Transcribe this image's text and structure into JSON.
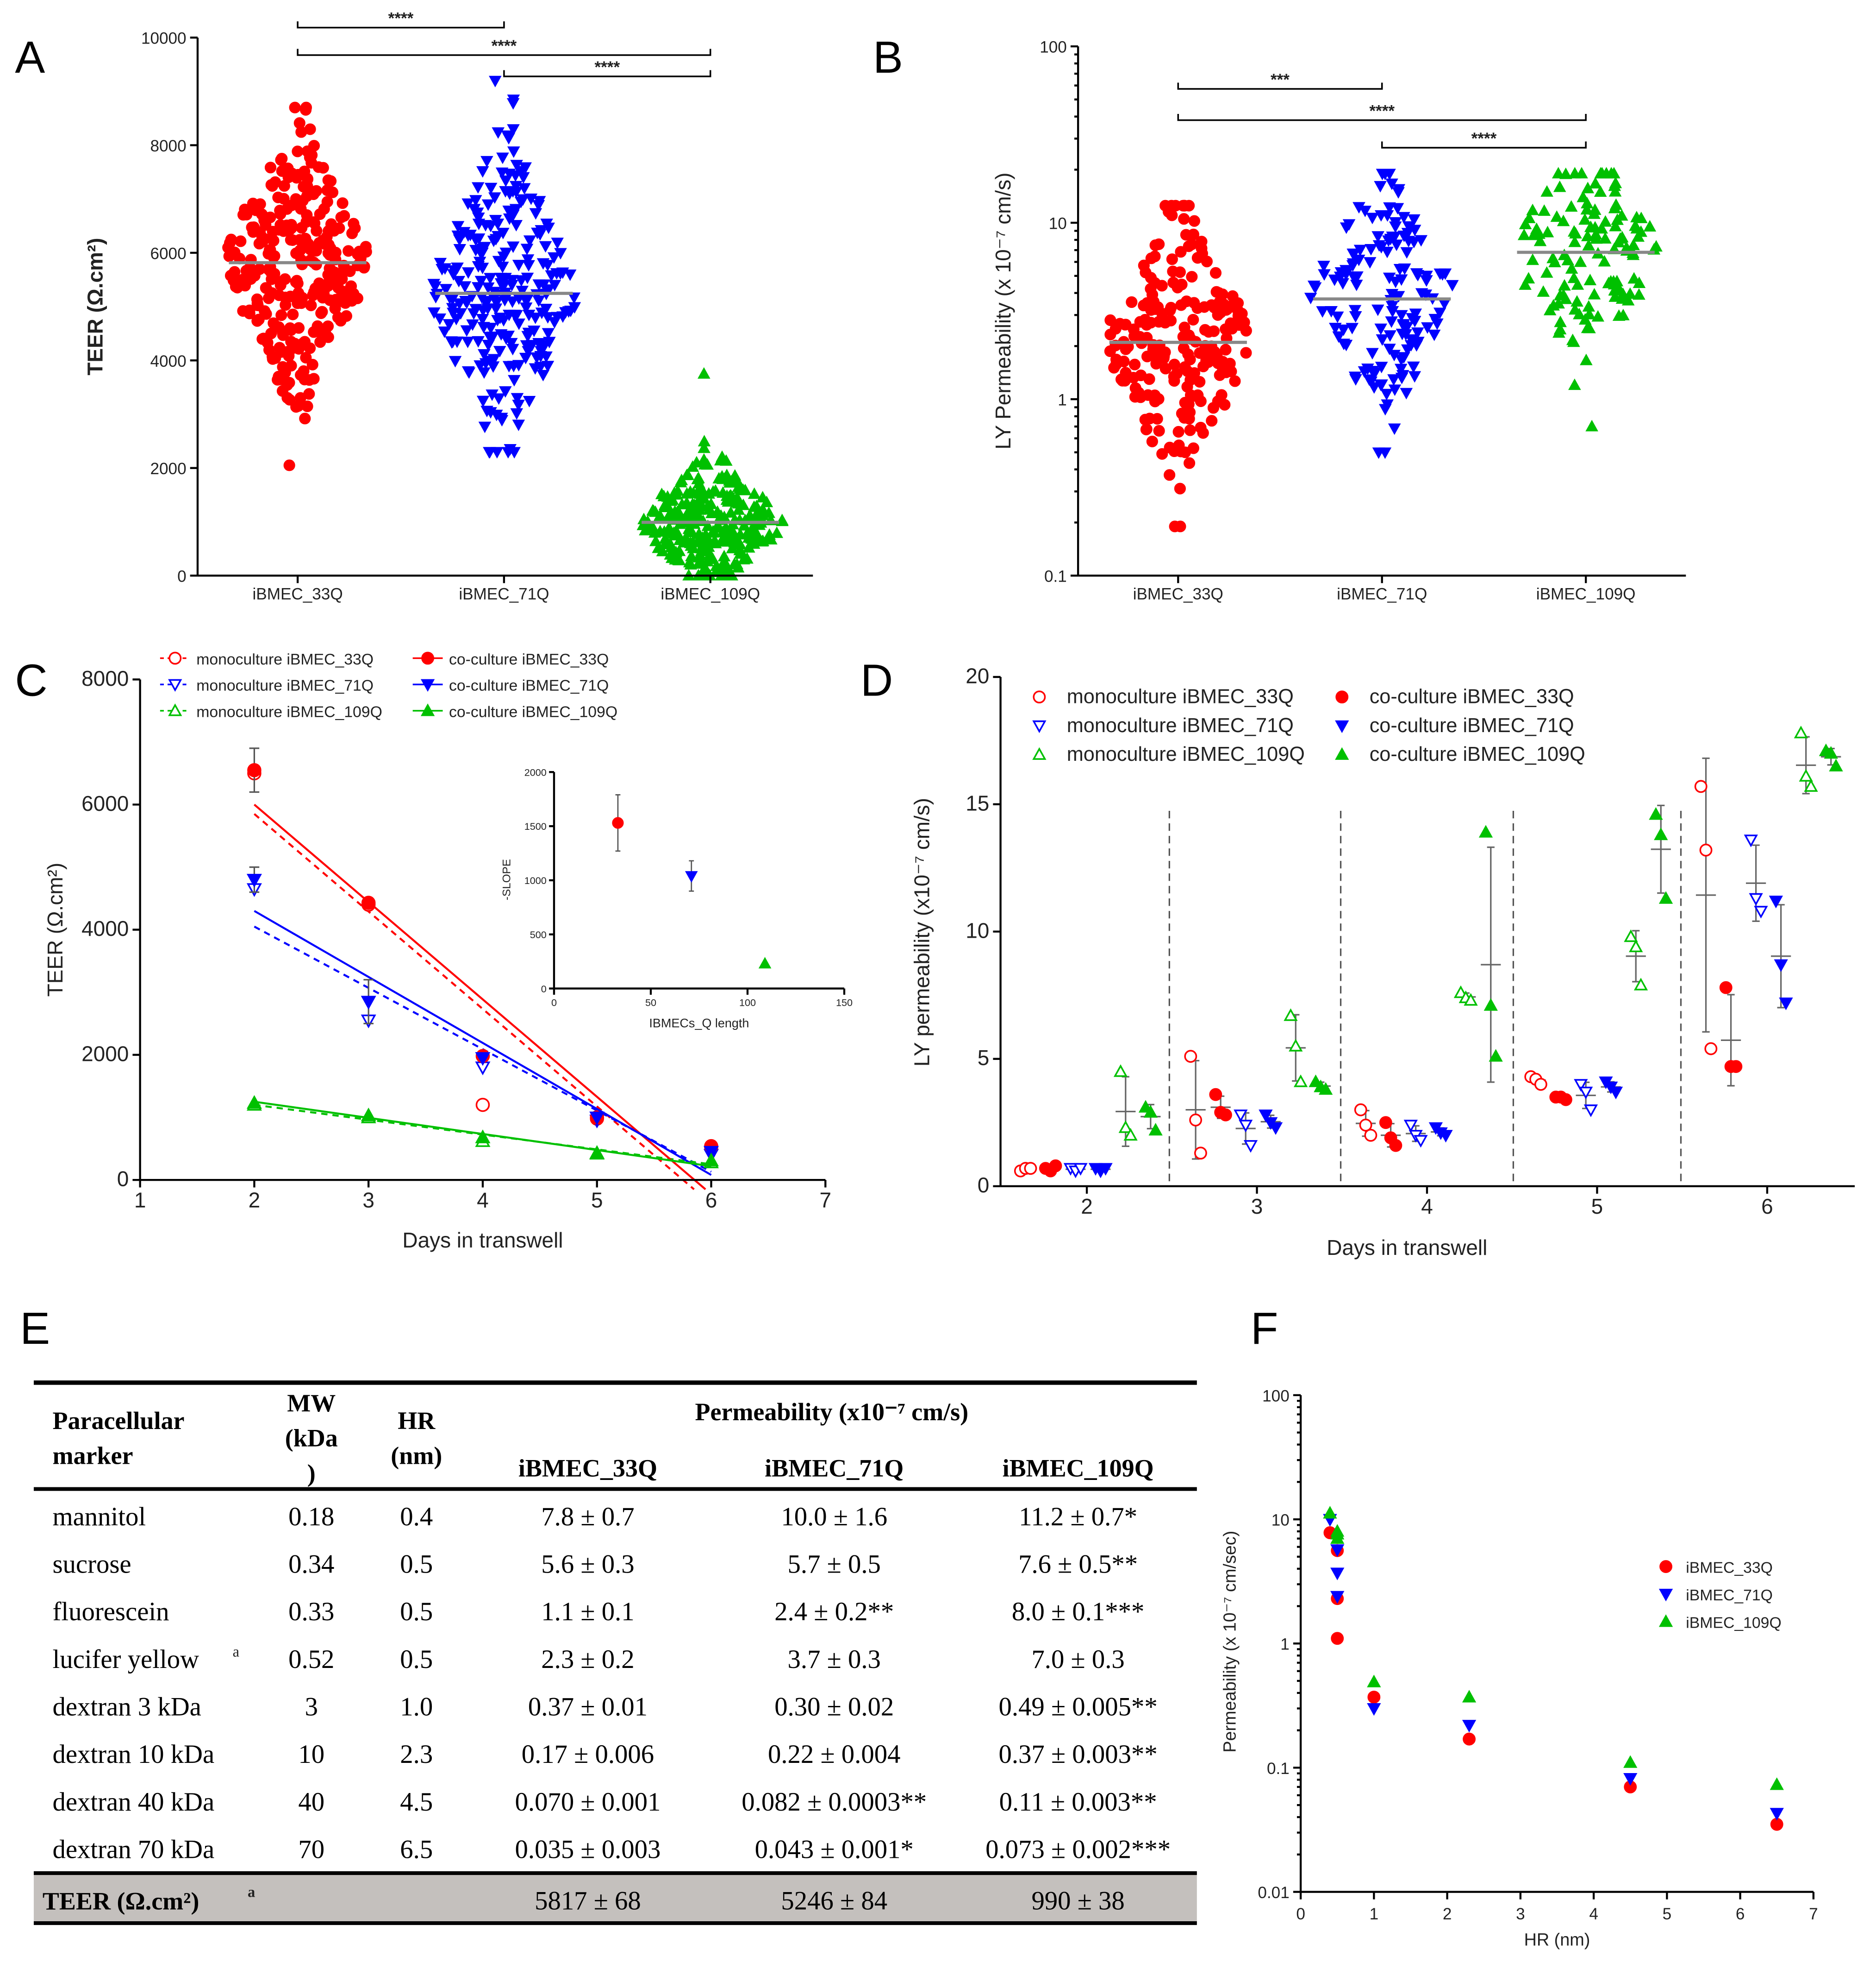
{
  "panel_labels": [
    "A",
    "B",
    "C",
    "D",
    "E",
    "F"
  ],
  "chart_data": [
    {
      "id": "A",
      "type": "scatter",
      "subtype": "swarm",
      "ylabel": "TEER (Ω.cm²)",
      "ylim": [
        0,
        10000
      ],
      "yticks": [
        0,
        2000,
        4000,
        6000,
        8000,
        10000
      ],
      "categories": [
        "iBMEC_33Q",
        "iBMEC_71Q",
        "iBMEC_109Q"
      ],
      "groups": [
        {
          "name": "iBMEC_33Q",
          "color": "#ff0000",
          "marker": "circle",
          "mean": 5817,
          "sd": 1150,
          "min": 2050,
          "max": 8700,
          "n": 300
        },
        {
          "name": "iBMEC_71Q",
          "color": "#0000ff",
          "marker": "triangle-down",
          "mean": 5246,
          "sd": 1300,
          "min": 2300,
          "max": 9200,
          "n": 260
        },
        {
          "name": "iBMEC_109Q",
          "color": "#00c000",
          "marker": "triangle-up",
          "mean": 990,
          "sd": 550,
          "min": 0,
          "max": 3750,
          "n": 300
        }
      ],
      "significance": [
        {
          "from": 0,
          "to": 1,
          "label": "****"
        },
        {
          "from": 0,
          "to": 2,
          "label": "****"
        },
        {
          "from": 1,
          "to": 2,
          "label": "****"
        }
      ]
    },
    {
      "id": "B",
      "type": "scatter",
      "subtype": "swarm",
      "yscale": "log",
      "ylabel": "LY Permeability (x 10⁻⁷ cm/s)",
      "ylim": [
        0.1,
        100
      ],
      "yticks": [
        0.1,
        1,
        10,
        100
      ],
      "categories": [
        "iBMEC_33Q",
        "iBMEC_71Q",
        "iBMEC_109Q"
      ],
      "groups": [
        {
          "name": "iBMEC_33Q",
          "color": "#ff0000",
          "marker": "circle",
          "mean": 2.1,
          "min": 0.19,
          "max": 12.5,
          "n": 220
        },
        {
          "name": "iBMEC_71Q",
          "color": "#0000ff",
          "marker": "triangle-down",
          "mean": 3.7,
          "min": 0.5,
          "max": 19,
          "n": 150
        },
        {
          "name": "iBMEC_109Q",
          "color": "#00c000",
          "marker": "triangle-up",
          "mean": 6.8,
          "min": 0.7,
          "max": 19,
          "n": 130
        }
      ],
      "significance": [
        {
          "from": 0,
          "to": 1,
          "label": "***"
        },
        {
          "from": 0,
          "to": 2,
          "label": "****"
        },
        {
          "from": 1,
          "to": 2,
          "label": "****"
        }
      ]
    },
    {
      "id": "C",
      "type": "scatter",
      "xlabel": "Days in transwell",
      "ylabel": "TEER (Ω.cm²)",
      "xlim": [
        1,
        7
      ],
      "ylim": [
        0,
        8000
      ],
      "xticks": [
        1,
        2,
        3,
        4,
        5,
        6,
        7
      ],
      "yticks": [
        0,
        2000,
        4000,
        6000,
        8000
      ],
      "series": [
        {
          "name": "monoculture iBMEC_33Q",
          "color": "#ff0000",
          "marker": "circle",
          "filled": false,
          "points": [
            [
              2,
              6500
            ],
            [
              3,
              4400
            ],
            [
              4,
              1200
            ],
            [
              5,
              980
            ],
            [
              6,
              520
            ]
          ],
          "err": [
            0,
            0,
            0,
            0,
            0
          ],
          "fit": [
            [
              2,
              5850
            ],
            [
              5.85,
              -150
            ]
          ],
          "dashed": true
        },
        {
          "name": "monoculture iBMEC_71Q",
          "color": "#0000ff",
          "marker": "triangle-down",
          "filled": false,
          "points": [
            [
              2,
              4650
            ],
            [
              3,
              2550
            ],
            [
              4,
              1800
            ],
            [
              5,
              950
            ],
            [
              6,
              400
            ]
          ],
          "err": [
            0,
            0,
            0,
            0,
            0
          ],
          "fit": [
            [
              2,
              4050
            ],
            [
              6,
              130
            ]
          ],
          "dashed": true
        },
        {
          "name": "monoculture iBMEC_109Q",
          "color": "#00c000",
          "marker": "triangle-up",
          "filled": false,
          "points": [
            [
              2,
              1200
            ],
            [
              3,
              1000
            ],
            [
              4,
              620
            ],
            [
              5,
              420
            ],
            [
              6,
              280
            ]
          ],
          "err": [
            0,
            0,
            0,
            0,
            0
          ],
          "fit": [
            [
              2,
              1200
            ],
            [
              6,
              250
            ]
          ],
          "dashed": true
        },
        {
          "name": "co-culture iBMEC_33Q",
          "color": "#ff0000",
          "marker": "circle",
          "filled": true,
          "points": [
            [
              2,
              6550
            ],
            [
              3,
              4430
            ],
            [
              4,
              1980
            ],
            [
              5,
              1000
            ],
            [
              6,
              540
            ]
          ],
          "err": [
            350,
            0,
            0,
            0,
            0
          ],
          "fit": [
            [
              2,
              6000
            ],
            [
              5.95,
              -150
            ]
          ],
          "dashed": false
        },
        {
          "name": "co-culture iBMEC_71Q",
          "color": "#0000ff",
          "marker": "triangle-down",
          "filled": true,
          "points": [
            [
              2,
              4800
            ],
            [
              3,
              2850
            ],
            [
              4,
              1950
            ],
            [
              5,
              1000
            ],
            [
              6,
              450
            ]
          ],
          "err": [
            200,
            350,
            0,
            0,
            0
          ],
          "fit": [
            [
              2,
              4300
            ],
            [
              6,
              80
            ]
          ],
          "dashed": false
        },
        {
          "name": "co-culture iBMEC_109Q",
          "color": "#00c000",
          "marker": "triangle-up",
          "filled": true,
          "points": [
            [
              2,
              1230
            ],
            [
              3,
              1030
            ],
            [
              4,
              680
            ],
            [
              5,
              430
            ],
            [
              6,
              310
            ]
          ],
          "err": [
            0,
            0,
            0,
            0,
            0
          ],
          "fit": [
            [
              2,
              1250
            ],
            [
              6,
              220
            ]
          ],
          "dashed": false
        }
      ],
      "inset": {
        "type": "scatter",
        "xlabel": "IBMECs_Q length",
        "ylabel": "-SLOPE",
        "xlim": [
          0,
          150
        ],
        "ylim": [
          0,
          2000
        ],
        "xticks": [
          0,
          50,
          100,
          150
        ],
        "yticks": [
          0,
          500,
          1000,
          1500,
          2000
        ],
        "points": [
          {
            "x": 33,
            "y": 1530,
            "err": 260,
            "color": "#ff0000",
            "marker": "circle"
          },
          {
            "x": 71,
            "y": 1040,
            "err": 140,
            "color": "#0000ff",
            "marker": "triangle-down"
          },
          {
            "x": 109,
            "y": 230,
            "err": 0,
            "color": "#00c000",
            "marker": "triangle-up"
          }
        ]
      }
    },
    {
      "id": "D",
      "type": "scatter",
      "xlabel": "Days in transwell",
      "ylabel": "LY permeability (x10⁻⁷ cm/s)",
      "ylim": [
        0,
        20
      ],
      "yticks": [
        0,
        5,
        10,
        15,
        20
      ],
      "days": [
        2,
        3,
        4,
        5,
        6
      ],
      "series": [
        {
          "name": "monoculture iBMEC_33Q",
          "color": "#ff0000",
          "marker": "circle",
          "filled": false,
          "values": [
            [
              0.6,
              0.7,
              0.7
            ],
            [
              5.1,
              2.6,
              1.3
            ],
            [
              3.0,
              2.4,
              2.0
            ],
            [
              4.3,
              4.2,
              4.0
            ],
            [
              15.7,
              13.2,
              5.4
            ]
          ]
        },
        {
          "name": "co-culture iBMEC_33Q",
          "color": "#ff0000",
          "marker": "circle",
          "filled": true,
          "values": [
            [
              0.7,
              0.6,
              0.8
            ],
            [
              3.6,
              2.9,
              2.8
            ],
            [
              2.5,
              1.9,
              1.6
            ],
            [
              3.5,
              3.5,
              3.4
            ],
            [
              7.8,
              4.7,
              4.7
            ]
          ]
        },
        {
          "name": "monoculture iBMEC_71Q",
          "color": "#0000ff",
          "marker": "triangle-down",
          "filled": false,
          "values": [
            [
              0.7,
              0.6,
              0.7
            ],
            [
              2.8,
              2.4,
              1.6
            ],
            [
              2.4,
              2.0,
              1.8
            ],
            [
              4.0,
              3.7,
              3.0
            ],
            [
              13.6,
              11.3,
              10.8
            ]
          ]
        },
        {
          "name": "co-culture iBMEC_71Q",
          "color": "#0000ff",
          "marker": "triangle-down",
          "filled": true,
          "values": [
            [
              0.7,
              0.6,
              0.7
            ],
            [
              2.8,
              2.5,
              2.3
            ],
            [
              2.3,
              2.1,
              2.0
            ],
            [
              4.1,
              3.9,
              3.7
            ],
            [
              11.2,
              8.7,
              7.2
            ]
          ]
        },
        {
          "name": "monoculture iBMEC_109Q",
          "color": "#00c000",
          "marker": "triangle-up",
          "filled": false,
          "values": [
            [
              4.5,
              2.3,
              2.0
            ],
            [
              6.7,
              5.5,
              4.1
            ],
            [
              7.6,
              7.4,
              7.3
            ],
            [
              9.8,
              9.4,
              7.9
            ],
            [
              17.8,
              16.1,
              15.7
            ]
          ]
        },
        {
          "name": "co-culture iBMEC_109Q",
          "color": "#00c000",
          "marker": "triangle-up",
          "filled": true,
          "values": [
            [
              3.1,
              2.9,
              2.2
            ],
            [
              4.1,
              3.9,
              3.8
            ],
            [
              13.9,
              7.1,
              5.1
            ],
            [
              14.6,
              13.8,
              11.3
            ],
            [
              17.1,
              17.0,
              16.5
            ]
          ]
        }
      ]
    },
    {
      "id": "F",
      "type": "scatter",
      "yscale": "log",
      "xlabel": "HR (nm)",
      "ylabel": "Permeability (x 10⁻⁷ cm/sec)",
      "xlim": [
        0,
        7
      ],
      "ylim": [
        0.01,
        100
      ],
      "xticks": [
        0,
        1,
        2,
        3,
        4,
        5,
        6,
        7
      ],
      "yticks": [
        0.01,
        0.1,
        1,
        10,
        100
      ],
      "series": [
        {
          "name": "iBMEC_33Q",
          "color": "#ff0000",
          "marker": "circle",
          "points": [
            [
              0.4,
              7.8
            ],
            [
              0.5,
              5.6
            ],
            [
              0.5,
              1.1
            ],
            [
              0.5,
              2.3
            ],
            [
              1.0,
              0.37
            ],
            [
              2.3,
              0.17
            ],
            [
              4.5,
              0.07
            ],
            [
              6.5,
              0.035
            ]
          ]
        },
        {
          "name": "iBMEC_71Q",
          "color": "#0000ff",
          "marker": "triangle-down",
          "points": [
            [
              0.4,
              10.0
            ],
            [
              0.5,
              5.7
            ],
            [
              0.5,
              2.4
            ],
            [
              0.5,
              3.7
            ],
            [
              1.0,
              0.3
            ],
            [
              2.3,
              0.22
            ],
            [
              4.5,
              0.082
            ],
            [
              6.5,
              0.043
            ]
          ]
        },
        {
          "name": "iBMEC_109Q",
          "color": "#00c000",
          "marker": "triangle-up",
          "points": [
            [
              0.4,
              11.2
            ],
            [
              0.5,
              7.6
            ],
            [
              0.5,
              8.0
            ],
            [
              0.5,
              7.0
            ],
            [
              1.0,
              0.49
            ],
            [
              2.3,
              0.37
            ],
            [
              4.5,
              0.11
            ],
            [
              6.5,
              0.073
            ]
          ]
        }
      ]
    }
  ],
  "table": {
    "header": {
      "marker": [
        "Paracellular",
        "marker"
      ],
      "mw": [
        "MW",
        "(kDa",
        ")"
      ],
      "hr": [
        "HR",
        "(nm)"
      ],
      "permeability": "Permeability (x10⁻⁷ cm/s)",
      "groups": [
        "iBMEC_33Q",
        "iBMEC_71Q",
        "iBMEC_109Q"
      ]
    },
    "rows": [
      {
        "marker": "mannitol",
        "note": "",
        "mw": "0.18",
        "hr": "0.4",
        "v33": "7.8 ± 0.7",
        "v71": "10.0 ± 1.6",
        "v109": "11.2 ± 0.7*"
      },
      {
        "marker": "sucrose",
        "note": "",
        "mw": "0.34",
        "hr": "0.5",
        "v33": "5.6 ± 0.3",
        "v71": "5.7 ± 0.5",
        "v109": "7.6 ± 0.5**"
      },
      {
        "marker": "fluorescein",
        "note": "",
        "mw": "0.33",
        "hr": "0.5",
        "v33": "1.1 ± 0.1",
        "v71": "2.4 ± 0.2**",
        "v109": "8.0 ± 0.1***"
      },
      {
        "marker": "lucifer yellow",
        "note": "a",
        "mw": "0.52",
        "hr": "0.5",
        "v33": "2.3 ± 0.2",
        "v71": "3.7 ± 0.3",
        "v109": "7.0 ± 0.3"
      },
      {
        "marker": "dextran 3 kDa",
        "note": "",
        "mw": "3",
        "hr": "1.0",
        "v33": "0.37 ± 0.01",
        "v71": "0.30 ± 0.02",
        "v109": "0.49 ± 0.005**"
      },
      {
        "marker": "dextran 10 kDa",
        "note": "",
        "mw": "10",
        "hr": "2.3",
        "v33": "0.17 ± 0.006",
        "v71": "0.22 ± 0.004",
        "v109": "0.37 ± 0.003**"
      },
      {
        "marker": "dextran 40 kDa",
        "note": "",
        "mw": "40",
        "hr": "4.5",
        "v33": "0.070 ± 0.001",
        "v71": "0.082 ± 0.0003**",
        "v109": "0.11 ± 0.003**"
      },
      {
        "marker": "dextran 70 kDa",
        "note": "",
        "mw": "70",
        "hr": "6.5",
        "v33": "0.035 ± 0.003",
        "v71": "0.043 ± 0.001*",
        "v109": "0.073 ± 0.002***"
      }
    ],
    "footer": {
      "label": "TEER (Ω.cm²)",
      "note": "a",
      "v33": "5817 ± 68",
      "v71": "5246 ± 84",
      "v109": "990 ± 38"
    }
  }
}
